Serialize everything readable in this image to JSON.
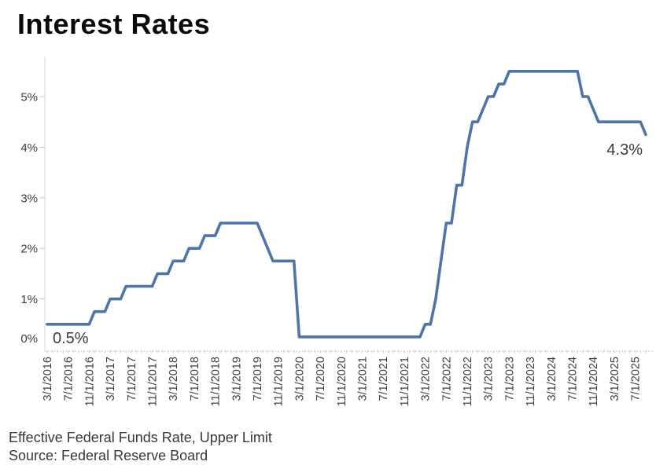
{
  "title": "Interest Rates",
  "footer": {
    "line1": "Effective Federal Funds Rate, Upper Limit",
    "line2": "Source: Federal Reserve Board"
  },
  "annotations": {
    "start_label": "0.5%",
    "end_label": "4.3%"
  },
  "colors": {
    "line": "#4e74a8",
    "axis_line": "#d9d9d9",
    "tick": "#c9c9c9",
    "axis_text": "#3d3d3d",
    "annotation_text": "#3c3c3c",
    "background": "#ffffff"
  },
  "chart_data": {
    "type": "line",
    "title": "Interest Rates",
    "series_name": "Effective Federal Funds Rate, Upper Limit",
    "source": "Federal Reserve Board",
    "unit": "percent",
    "frequency": "monthly",
    "start_month": "3/2016",
    "end_month": "9/2025",
    "ylim": [
      0,
      5.8
    ],
    "grid": "off",
    "legend": "none",
    "y_ticks": [
      "0%",
      "1%",
      "2%",
      "3%",
      "4%",
      "5%"
    ],
    "x_tick_every_n_months": 4,
    "x_tick_labels": [
      "3/1/2016",
      "7/1/2016",
      "11/1/2016",
      "3/1/2017",
      "7/1/2017",
      "11/1/2017",
      "3/1/2018",
      "7/1/2018",
      "11/1/2018",
      "3/1/2019",
      "7/1/2019",
      "11/1/2019",
      "3/1/2020",
      "7/1/2020",
      "11/1/2020",
      "3/1/2021",
      "7/1/2021",
      "11/1/2021",
      "3/1/2022",
      "7/1/2022",
      "11/1/2022",
      "3/1/2023",
      "7/1/2023",
      "11/1/2023",
      "3/1/2024",
      "7/1/2024",
      "11/1/2024",
      "3/1/2025",
      "7/1/2025"
    ],
    "values": [
      0.5,
      0.5,
      0.5,
      0.5,
      0.5,
      0.5,
      0.5,
      0.5,
      0.5,
      0.75,
      0.75,
      0.75,
      1.0,
      1.0,
      1.0,
      1.25,
      1.25,
      1.25,
      1.25,
      1.25,
      1.25,
      1.5,
      1.5,
      1.5,
      1.75,
      1.75,
      1.75,
      2.0,
      2.0,
      2.0,
      2.25,
      2.25,
      2.25,
      2.5,
      2.5,
      2.5,
      2.5,
      2.5,
      2.5,
      2.5,
      2.5,
      2.25,
      2.0,
      1.75,
      1.75,
      1.75,
      1.75,
      1.75,
      0.25,
      0.25,
      0.25,
      0.25,
      0.25,
      0.25,
      0.25,
      0.25,
      0.25,
      0.25,
      0.25,
      0.25,
      0.25,
      0.25,
      0.25,
      0.25,
      0.25,
      0.25,
      0.25,
      0.25,
      0.25,
      0.25,
      0.25,
      0.25,
      0.5,
      0.5,
      1.0,
      1.75,
      2.5,
      2.5,
      3.25,
      3.25,
      4.0,
      4.5,
      4.5,
      4.75,
      5.0,
      5.0,
      5.25,
      5.25,
      5.5,
      5.5,
      5.5,
      5.5,
      5.5,
      5.5,
      5.5,
      5.5,
      5.5,
      5.5,
      5.5,
      5.5,
      5.5,
      5.5,
      5.0,
      5.0,
      4.75,
      4.5,
      4.5,
      4.5,
      4.5,
      4.5,
      4.5,
      4.5,
      4.5,
      4.5,
      4.25
    ]
  }
}
